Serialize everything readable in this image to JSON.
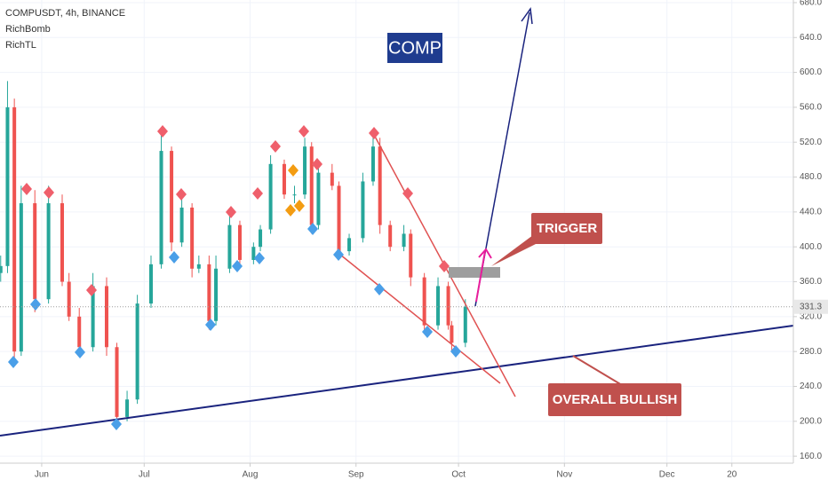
{
  "header": {
    "symbol": "COMPUSDT, 4h, BINANCE",
    "indicators": [
      "RichBomb",
      "RichTL"
    ]
  },
  "chart_data": {
    "type": "candlestick",
    "x": [
      -12,
      -10,
      -8,
      -6,
      -2,
      2,
      6,
      8,
      11,
      15,
      19,
      22,
      25,
      28,
      32,
      35,
      38,
      41,
      44,
      46,
      49,
      51,
      55,
      58,
      62,
      64,
      67,
      71,
      74,
      77,
      79,
      81,
      85,
      87,
      90,
      94,
      97,
      99,
      102,
      106,
      108,
      112,
      116,
      119,
      120,
      124
    ],
    "open": [
      370,
      378,
      560,
      280,
      450,
      340,
      450,
      360,
      320,
      285,
      355,
      285,
      205,
      225,
      335,
      380,
      510,
      405,
      445,
      375,
      380,
      315,
      375,
      425,
      385,
      400,
      420,
      495,
      460,
      460,
      515,
      425,
      485,
      470,
      395,
      410,
      475,
      515,
      425,
      400,
      415,
      365,
      310,
      355,
      310,
      290
    ],
    "high": [
      390,
      590,
      570,
      470,
      465,
      470,
      460,
      370,
      330,
      370,
      365,
      290,
      235,
      345,
      390,
      530,
      515,
      460,
      450,
      390,
      390,
      390,
      440,
      430,
      405,
      425,
      505,
      500,
      470,
      525,
      520,
      495,
      495,
      475,
      415,
      485,
      525,
      525,
      430,
      425,
      420,
      370,
      365,
      360,
      315,
      340
    ],
    "low": [
      360,
      370,
      265,
      275,
      325,
      335,
      355,
      315,
      275,
      280,
      275,
      195,
      200,
      220,
      330,
      375,
      395,
      400,
      365,
      370,
      305,
      310,
      370,
      375,
      380,
      395,
      415,
      455,
      450,
      455,
      415,
      420,
      465,
      385,
      390,
      405,
      470,
      415,
      395,
      395,
      355,
      305,
      305,
      305,
      280,
      285
    ],
    "close": [
      378,
      560,
      280,
      450,
      340,
      450,
      360,
      320,
      285,
      355,
      285,
      205,
      225,
      335,
      380,
      510,
      405,
      445,
      375,
      380,
      315,
      375,
      425,
      385,
      400,
      420,
      495,
      460,
      460,
      515,
      425,
      485,
      470,
      395,
      410,
      475,
      515,
      425,
      400,
      415,
      365,
      310,
      355,
      310,
      290,
      331.3
    ],
    "up_color": "#26a69a",
    "down_color": "#ef5350",
    "xlim": [
      -12.2,
      220
    ],
    "xticks": [
      {
        "value": 0,
        "label": "Jun"
      },
      {
        "value": 30,
        "label": "Jul"
      },
      {
        "value": 61,
        "label": "Aug"
      },
      {
        "value": 92,
        "label": "Sep"
      },
      {
        "value": 122,
        "label": "Oct"
      },
      {
        "value": 153,
        "label": "Nov"
      },
      {
        "value": 183,
        "label": "Dec"
      },
      {
        "value": 202,
        "label": "20"
      }
    ],
    "ylim": [
      152,
      683
    ],
    "yticks": [
      {
        "value": 160,
        "label": "160.0"
      },
      {
        "value": 200,
        "label": "200.0"
      },
      {
        "value": 240,
        "label": "240.0"
      },
      {
        "value": 280,
        "label": "280.0"
      },
      {
        "value": 320,
        "label": "320.0"
      },
      {
        "value": 360,
        "label": "360.0"
      },
      {
        "value": 400,
        "label": "400.0"
      },
      {
        "value": 440,
        "label": "440.0"
      },
      {
        "value": 480,
        "label": "480.0"
      },
      {
        "value": 520,
        "label": "520.0"
      },
      {
        "value": 560,
        "label": "560.0"
      },
      {
        "value": 600,
        "label": "600.0"
      },
      {
        "value": 640,
        "label": "640.0"
      },
      {
        "value": 680,
        "label": "680.0"
      }
    ],
    "last_price": 331.3,
    "annotations": [
      "COMP",
      "TRIGGER",
      "OVERALL BULLISH"
    ]
  }
}
